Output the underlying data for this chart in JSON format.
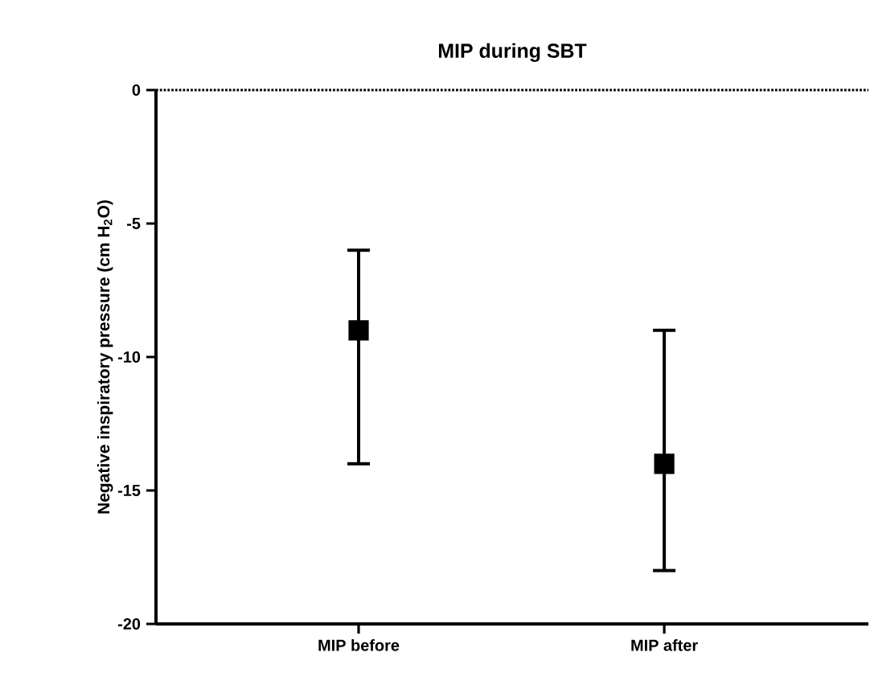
{
  "chart_data": {
    "type": "scatter",
    "title": "MIP during SBT",
    "ylabel": "Negative inspiratory pressure (cm H$_{2}$O)",
    "categories": [
      "MIP before",
      "MIP after"
    ],
    "values": [
      -9,
      -14
    ],
    "errors": [
      [
        -14,
        -6
      ],
      [
        -18,
        -9
      ]
    ],
    "color": "#000000",
    "marker": "square",
    "ylim": [
      -20,
      0
    ],
    "yticks": [
      -20,
      -15,
      -10,
      -5,
      0
    ],
    "ref_lines": [
      {
        "axis": "y",
        "value": 0,
        "line_style": "dotted",
        "color": "#000000"
      }
    ],
    "grid": false
  }
}
